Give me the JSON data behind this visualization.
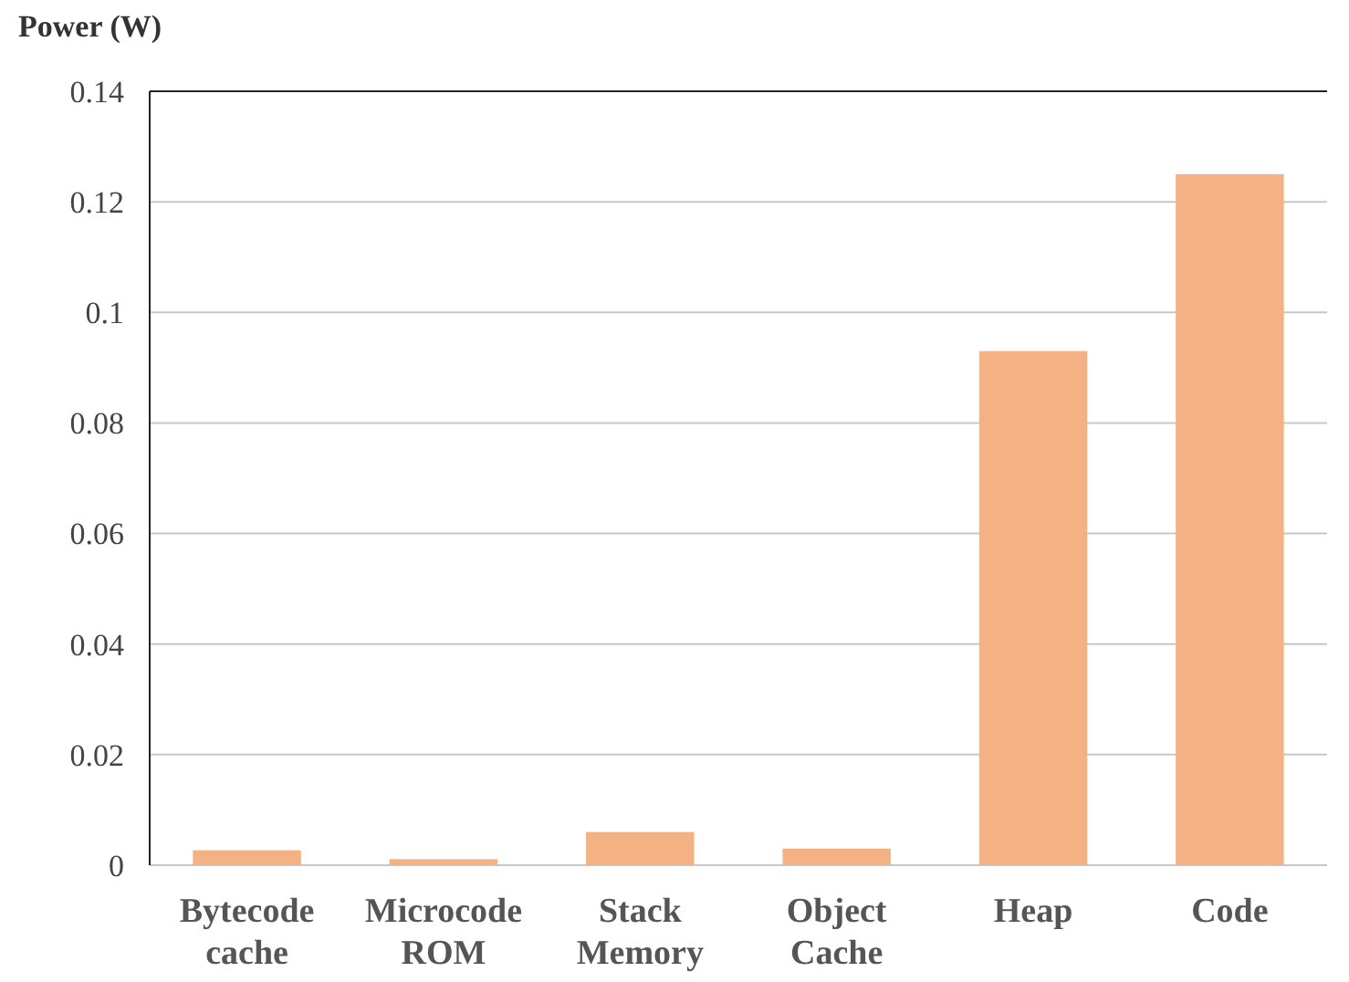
{
  "chart_data": {
    "type": "bar",
    "ylabel": "Power (W)",
    "categories": [
      "Bytecode cache",
      "Microcode ROM",
      "Stack Memory",
      "Object Cache",
      "Heap",
      "Code"
    ],
    "values": [
      0.0027,
      0.0011,
      0.006,
      0.003,
      0.093,
      0.125
    ],
    "color": "#f4b183",
    "ylim": [
      0,
      0.14
    ],
    "yticks": [
      0,
      0.02,
      0.04,
      0.06,
      0.08,
      0.1,
      0.12,
      0.14
    ],
    "grid": "y"
  }
}
